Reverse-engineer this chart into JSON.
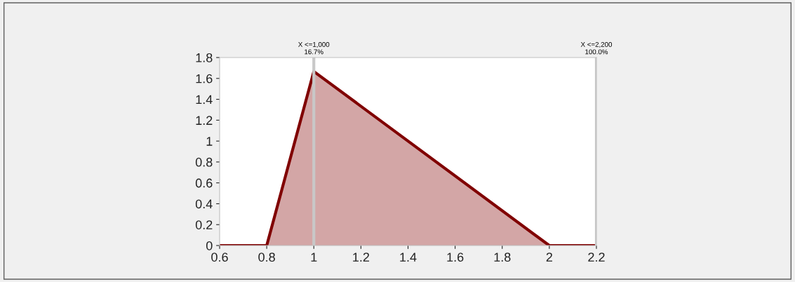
{
  "chart_data": {
    "type": "area",
    "x": [
      0.6,
      0.8,
      1.0,
      2.0,
      2.2
    ],
    "series": [
      {
        "color": "#800000",
        "values": [
          0,
          0,
          1.667,
          0,
          0
        ]
      }
    ],
    "xlim": [
      0.6,
      2.2
    ],
    "xticks": [
      0.6,
      0.8,
      1,
      1.2,
      1.4,
      1.6,
      1.8,
      2,
      2.2
    ],
    "ylim": [
      0,
      1.8
    ],
    "yticks": [
      0,
      0.2,
      0.4,
      0.6,
      0.8,
      1,
      1.2,
      1.4,
      1.6,
      1.8
    ],
    "ref_lines": [
      {
        "axis": "x",
        "value": 1.0,
        "label": "X <=1,000\n16.7%",
        "color": "#c8c8c8"
      },
      {
        "axis": "x",
        "value": 2.2,
        "label": "X <=2,200\n100.0%",
        "color": "#c8c8c8"
      }
    ],
    "grid": false,
    "legend": false
  }
}
